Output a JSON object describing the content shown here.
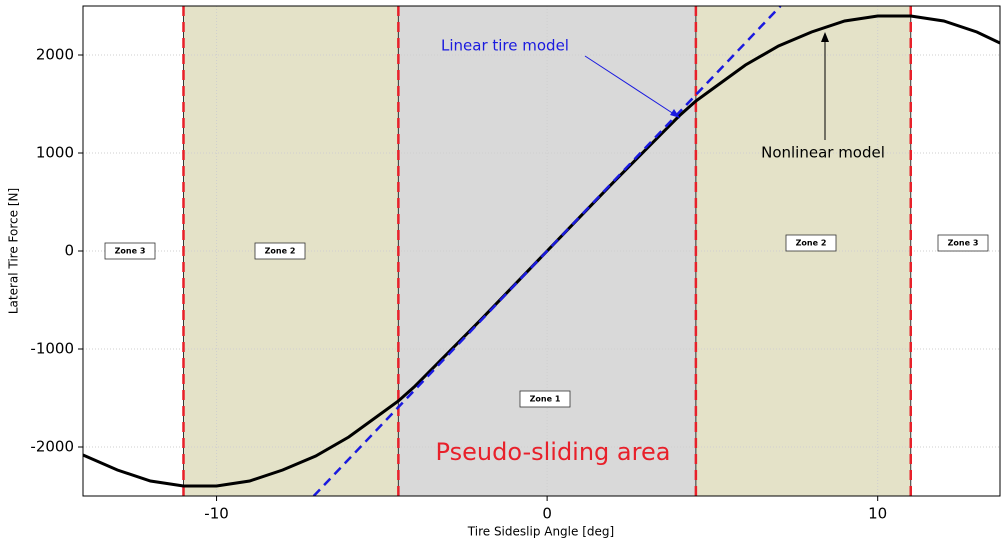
{
  "chart_data": {
    "type": "line",
    "xlabel": "Tire Sideslip Angle [deg]",
    "ylabel": "Lateral Tire Force [N]",
    "xlim": [
      -14.04,
      13.7
    ],
    "ylim": [
      -2500,
      2500
    ],
    "xticks": [
      -10,
      0,
      10
    ],
    "yticks": [
      -2000,
      -1000,
      0,
      1000,
      2000
    ],
    "grid": true,
    "boundaries": [
      -11,
      -4.5,
      4.5,
      11
    ],
    "boundary_color": "#e8202a",
    "zone_colors": [
      "#e4e2c8",
      "#d9d9d9",
      "#e4e2c8"
    ],
    "zone_labels": [
      "Zone 3",
      "Zone 2",
      "Zone 1",
      "Zone 2",
      "Zone 3"
    ],
    "series": [
      {
        "name": "Nonlinear model",
        "color": "#000000",
        "dashed": false,
        "x": [
          -14.04,
          -13,
          -12,
          -11,
          -10,
          -9,
          -8,
          -7,
          -6,
          -5,
          -4.5,
          -4,
          -3,
          -2,
          -1,
          0,
          1,
          2,
          3,
          4,
          4.5,
          5,
          6,
          7,
          8,
          9,
          10,
          11,
          12,
          13,
          13.7
        ],
        "values": [
          -2082,
          -2235,
          -2347,
          -2398,
          -2398,
          -2347,
          -2235,
          -2092,
          -1898,
          -1653,
          -1530,
          -1380,
          -1040,
          -700,
          -350,
          0,
          350,
          700,
          1040,
          1380,
          1530,
          1653,
          1898,
          2092,
          2235,
          2347,
          2398,
          2398,
          2347,
          2235,
          2122
        ]
      },
      {
        "name": "Linear tire model",
        "color": "#1a1adf",
        "dashed": true,
        "x": [
          -7.06,
          7.06
        ],
        "values": [
          -2500,
          2500
        ]
      }
    ],
    "annotations": [
      "Linear tire model",
      "Nonlinear model",
      "Pseudo-sliding area"
    ]
  }
}
